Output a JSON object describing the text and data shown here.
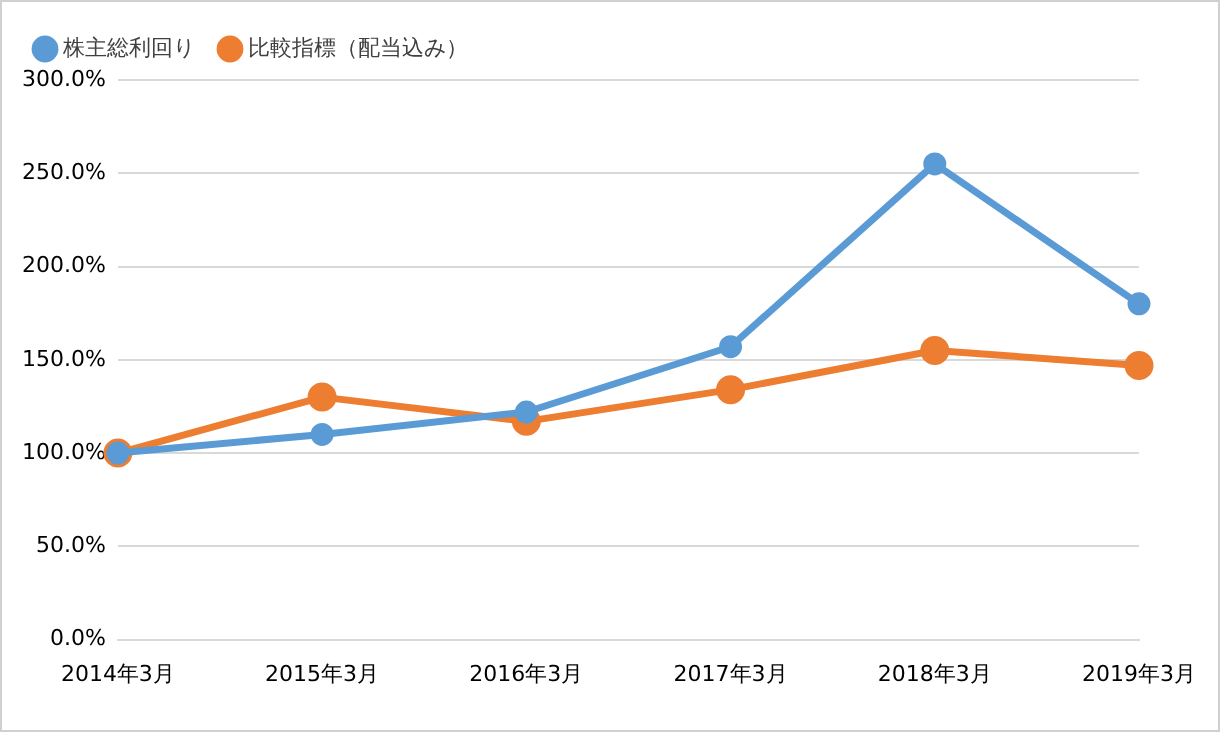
{
  "chart_data": {
    "type": "line",
    "categories": [
      "2014年3月",
      "2015年3月",
      "2016年3月",
      "2017年3月",
      "2018年3月",
      "2019年3月"
    ],
    "series": [
      {
        "name": "株主総利回り",
        "color": "#5b9bd5",
        "values": [
          100,
          110,
          122,
          157,
          255,
          180
        ]
      },
      {
        "name": "比較指標（配当込み）",
        "color": "#ed7d31",
        "values": [
          100,
          130,
          117,
          134,
          155,
          147
        ]
      }
    ],
    "ylim": [
      0,
      300
    ],
    "yticks": [
      {
        "value": 0,
        "label": "0.0%"
      },
      {
        "value": 50,
        "label": "50.0%"
      },
      {
        "value": 100,
        "label": "100.0%"
      },
      {
        "value": 150,
        "label": "150.0%"
      },
      {
        "value": 200,
        "label": "200.0%"
      },
      {
        "value": 250,
        "label": "250.0%"
      },
      {
        "value": 300,
        "label": "300.0%"
      }
    ],
    "grid": "y",
    "legend": "top left",
    "marker": "circle",
    "line_style": "solid"
  }
}
